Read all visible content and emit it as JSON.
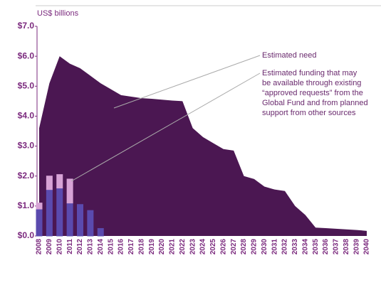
{
  "chart_data": {
    "type": "area",
    "y_axis_label": "US$ billions",
    "categories": [
      "2008",
      "2009",
      "2010",
      "2011",
      "2012",
      "2013",
      "2014",
      "2015",
      "2016",
      "2017",
      "2018",
      "2019",
      "2020",
      "2021",
      "2022",
      "2023",
      "2024",
      "2025",
      "2026",
      "2027",
      "2028",
      "2029",
      "2030",
      "2031",
      "2032",
      "2033",
      "2034",
      "2035",
      "2036",
      "2037",
      "2038",
      "2039",
      "2040"
    ],
    "series": [
      {
        "name": "Estimated need",
        "color": "#4b1752",
        "values": [
          3.6,
          5.1,
          6.0,
          5.75,
          5.6,
          5.35,
          5.1,
          4.9,
          4.7,
          4.65,
          4.6,
          4.58,
          4.55,
          4.52,
          4.5,
          3.6,
          3.3,
          3.1,
          2.9,
          2.85,
          2.0,
          1.9,
          1.65,
          1.55,
          1.5,
          1.0,
          0.7,
          0.28,
          0.26,
          0.24,
          0.22,
          0.2,
          0.17
        ]
      },
      {
        "color": "#5a4aae",
        "values": [
          0.9,
          1.55,
          1.6,
          1.1,
          1.05,
          0.85,
          0.25,
          null,
          null,
          null,
          null,
          null,
          null,
          null,
          null,
          null,
          null,
          null,
          null,
          null,
          null,
          null,
          null,
          null,
          null,
          null,
          null,
          null,
          null,
          null,
          null,
          null,
          null
        ]
      },
      {
        "color": "#d7a3d6",
        "values": [
          0.2,
          0.45,
          0.45,
          0.8,
          0,
          0,
          0,
          null,
          null,
          null,
          null,
          null,
          null,
          null,
          null,
          null,
          null,
          null,
          null,
          null,
          null,
          null,
          null,
          null,
          null,
          null,
          null,
          null,
          null,
          null,
          null,
          null,
          null
        ]
      }
    ],
    "funding_annotation": [
      "Estimated funding that may",
      "be available through existing",
      "“approved requests” from the",
      "Global Fund and from planned",
      "support from other sources"
    ],
    "ylim": [
      0,
      7
    ],
    "yticks": [
      {
        "value": 0,
        "label": "$0.0"
      },
      {
        "value": 1,
        "label": "$1.0"
      },
      {
        "value": 2,
        "label": "$2.0"
      },
      {
        "value": 3,
        "label": "$3.0"
      },
      {
        "value": 4,
        "label": "$4.0"
      },
      {
        "value": 5,
        "label": "$5.0"
      },
      {
        "value": 6,
        "label": "$6.0"
      },
      {
        "value": 7,
        "label": "$7.0"
      }
    ]
  }
}
